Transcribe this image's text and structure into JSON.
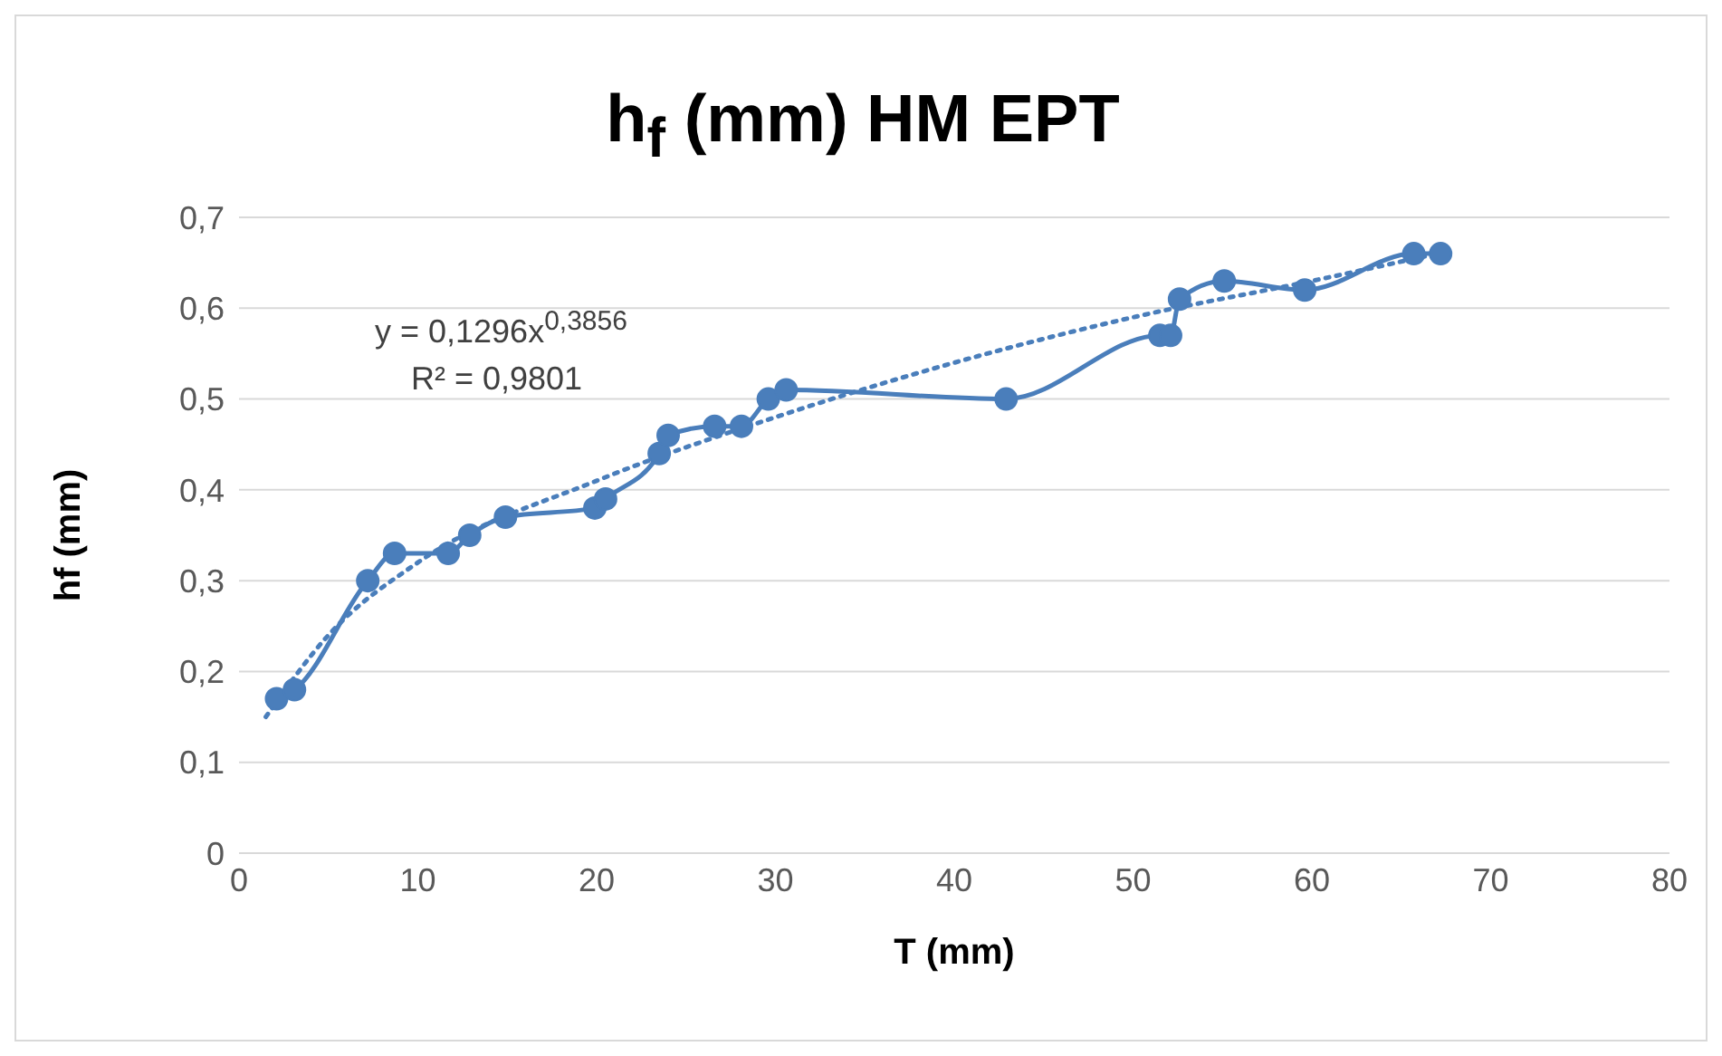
{
  "chart_data": {
    "type": "line",
    "title": "h$_{f}$ (mm) HM EPT",
    "xlabel": "T (mm)",
    "ylabel": "hf (mm)",
    "annotations": [
      "y = 0,1296x$^{0,3856}$",
      "R² = 0,9801"
    ],
    "series": [
      {
        "color": "#4a7ebb",
        "marker": "circle",
        "line_style": "solid",
        "x": [
          2.1,
          3.1,
          7.2,
          8.7,
          11.7,
          12.9,
          14.9,
          19.9,
          20.5,
          23.5,
          24.0,
          26.6,
          28.1,
          29.6,
          30.6,
          42.9,
          51.5,
          52.1,
          52.6,
          55.1,
          59.6,
          65.7,
          67.2
        ],
        "values": [
          0.17,
          0.18,
          0.3,
          0.33,
          0.33,
          0.35,
          0.37,
          0.38,
          0.39,
          0.44,
          0.46,
          0.47,
          0.47,
          0.5,
          0.51,
          0.5,
          0.57,
          0.57,
          0.61,
          0.63,
          0.62,
          0.66,
          0.66
        ]
      },
      {
        "type": "line",
        "color": "#4a7ebb",
        "marker": "none",
        "line_style": "dotted",
        "x": [
          1.5,
          5,
          10,
          20,
          30,
          40,
          50,
          60,
          67
        ],
        "values": [
          0.15,
          0.24,
          0.32,
          0.41,
          0.48,
          0.54,
          0.59,
          0.63,
          0.66
        ]
      }
    ],
    "xlim": [
      0,
      80
    ],
    "xticks": [
      0,
      10,
      20,
      30,
      40,
      50,
      60,
      70,
      80
    ],
    "ylim": [
      0,
      0.7
    ],
    "yticks": [
      {
        "value": 0,
        "label": "0"
      },
      {
        "value": 0.1,
        "label": "0,1"
      },
      {
        "value": 0.2,
        "label": "0,2"
      },
      {
        "value": 0.3,
        "label": "0,3"
      },
      {
        "value": 0.4,
        "label": "0,4"
      },
      {
        "value": 0.5,
        "label": "0,5"
      },
      {
        "value": 0.6,
        "label": "0,6"
      },
      {
        "value": 0.7,
        "label": "0,7"
      }
    ],
    "grid": "y"
  }
}
